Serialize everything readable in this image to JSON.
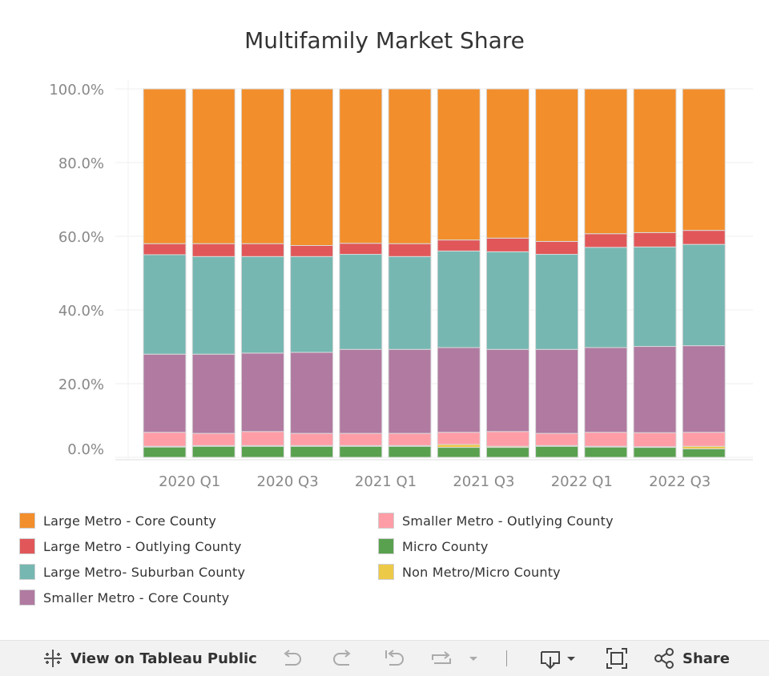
{
  "chart_data": {
    "type": "stacked-bar",
    "title": "Multifamily Market Share",
    "ylim": [
      0,
      100
    ],
    "y_ticks": [
      "100.0%",
      "80.0%",
      "60.0%",
      "40.0%",
      "20.0%",
      "0.0%"
    ],
    "y_tick_values": [
      100,
      80,
      60,
      40,
      20,
      0
    ],
    "x_tick_labels": [
      "2020 Q1",
      "2020 Q3",
      "2021 Q1",
      "2021 Q3",
      "2022 Q1",
      "2022 Q3"
    ],
    "x_tick_bar_index": [
      1,
      3,
      5,
      7,
      9,
      11
    ],
    "bar_count": 12,
    "legend_placement": "bottom",
    "grid": true,
    "series": [
      {
        "name": "Micro County",
        "color": "#59A14F",
        "values": [
          2.8,
          3.0,
          3.0,
          3.0,
          3.0,
          3.0,
          2.7,
          2.7,
          3.0,
          2.8,
          2.7,
          2.3
        ]
      },
      {
        "name": "Non Metro/Micro County",
        "color": "#EDC948",
        "values": [
          0.2,
          0.2,
          0.2,
          0.2,
          0.2,
          0.2,
          0.8,
          0.3,
          0.2,
          0.2,
          0.2,
          0.7
        ]
      },
      {
        "name": "Smaller Metro - Outlying County",
        "color": "#FF9DA7",
        "values": [
          3.8,
          3.3,
          3.8,
          3.3,
          3.3,
          3.3,
          3.3,
          4.0,
          3.3,
          3.8,
          3.8,
          3.8
        ]
      },
      {
        "name": "Smaller Metro - Core County",
        "color": "#B07AA1",
        "values": [
          21.2,
          21.5,
          21.3,
          22.0,
          22.8,
          22.8,
          23.0,
          22.3,
          22.8,
          23.0,
          23.4,
          23.5
        ]
      },
      {
        "name": "Large Metro- Suburban County",
        "color": "#76B7B2",
        "values": [
          27.0,
          26.5,
          26.2,
          26.0,
          25.8,
          25.2,
          26.2,
          26.5,
          25.8,
          27.2,
          27.0,
          27.5
        ]
      },
      {
        "name": "Large Metro - Outlying County",
        "color": "#E15759",
        "values": [
          3.0,
          3.5,
          3.5,
          3.0,
          3.0,
          3.5,
          3.0,
          3.7,
          3.5,
          3.7,
          3.9,
          3.8
        ]
      },
      {
        "name": "Large Metro - Core County",
        "color": "#F28E2B",
        "values": [
          42.0,
          42.0,
          42.0,
          42.5,
          41.9,
          42.0,
          41.0,
          40.5,
          41.4,
          39.3,
          39.0,
          38.4
        ]
      }
    ]
  },
  "legend": {
    "items": [
      {
        "label": "Large Metro - Core County",
        "color": "#F28E2B"
      },
      {
        "label": "Large Metro - Outlying County",
        "color": "#E15759"
      },
      {
        "label": "Large Metro- Suburban County",
        "color": "#76B7B2"
      },
      {
        "label": "Smaller Metro - Core County",
        "color": "#B07AA1"
      },
      {
        "label": "Smaller Metro - Outlying County",
        "color": "#FF9DA7"
      },
      {
        "label": "Micro County",
        "color": "#59A14F"
      },
      {
        "label": "Non Metro/Micro County",
        "color": "#EDC948"
      }
    ]
  },
  "toolbar": {
    "view_label": "View on Tableau Public",
    "share_label": "Share",
    "icons": [
      "tableau-icon",
      "undo-icon",
      "redo-icon",
      "revert-icon",
      "refresh-icon",
      "dropdown-icon",
      "download-icon",
      "fullscreen-icon",
      "share-icon"
    ]
  }
}
